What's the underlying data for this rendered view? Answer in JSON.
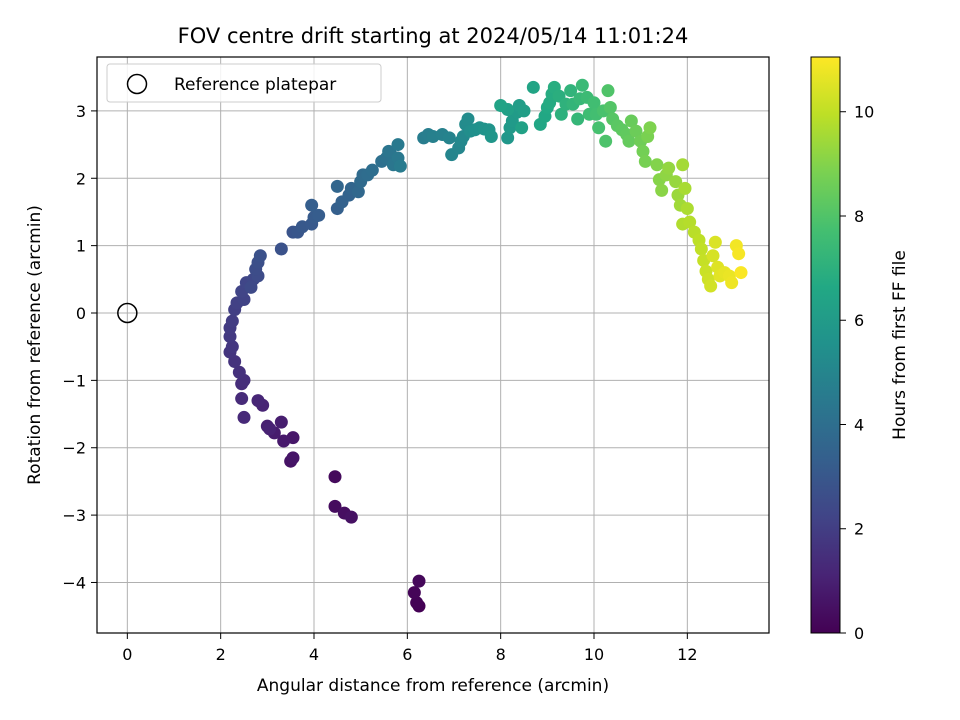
{
  "chart_data": {
    "type": "scatter",
    "title": "FOV centre drift starting at 2024/05/14 11:01:24",
    "xlabel": "Angular distance from reference (arcmin)",
    "ylabel": "Rotation from reference (arcmin)",
    "xlim": [
      -0.65,
      13.75
    ],
    "ylim": [
      -4.75,
      3.8
    ],
    "xticks": [
      0,
      2,
      4,
      6,
      8,
      10,
      12
    ],
    "yticks": [
      -4,
      -3,
      -2,
      -1,
      0,
      1,
      2,
      3
    ],
    "xtick_labels": [
      "0",
      "2",
      "4",
      "6",
      "8",
      "10",
      "12"
    ],
    "ytick_labels": [
      "−4",
      "−3",
      "−2",
      "−1",
      "0",
      "1",
      "2",
      "3"
    ],
    "grid": true,
    "legend": {
      "placement": "top-left",
      "entries": [
        "Reference platepar"
      ]
    },
    "colorbar": {
      "label": "Hours from first FF file",
      "colormap": "viridis",
      "range": [
        0,
        11.05
      ],
      "ticks": [
        0,
        2,
        4,
        6,
        8,
        10
      ],
      "tick_labels": [
        "0",
        "2",
        "4",
        "6",
        "8",
        "10"
      ]
    },
    "reference_point": {
      "x": 0,
      "y": 0
    },
    "point_order": [
      "x",
      "y",
      "hours"
    ],
    "points": [
      [
        6.25,
        -4.35
      ],
      [
        6.2,
        -4.3
      ],
      [
        6.15,
        -4.15
      ],
      [
        6.25,
        -3.98
      ],
      [
        4.45,
        -2.43
      ],
      [
        4.45,
        -2.87
      ],
      [
        4.65,
        -2.97
      ],
      [
        4.8,
        -3.03
      ],
      [
        3.5,
        -2.2
      ],
      [
        3.55,
        -2.15
      ],
      [
        3.55,
        -1.85
      ],
      [
        3.35,
        -1.9
      ],
      [
        3.15,
        -1.78
      ],
      [
        3.3,
        -1.62
      ],
      [
        3.0,
        -1.68
      ],
      [
        3.05,
        -1.72
      ],
      [
        2.9,
        -1.37
      ],
      [
        2.8,
        -1.3
      ],
      [
        2.5,
        -1.55
      ],
      [
        2.45,
        -1.27
      ],
      [
        2.45,
        -1.05
      ],
      [
        2.5,
        -1.0
      ],
      [
        2.4,
        -0.88
      ],
      [
        2.3,
        -0.72
      ],
      [
        2.2,
        -0.58
      ],
      [
        2.25,
        -0.5
      ],
      [
        2.2,
        -0.35
      ],
      [
        2.2,
        -0.22
      ],
      [
        2.25,
        -0.12
      ],
      [
        2.3,
        0.05
      ],
      [
        2.35,
        0.15
      ],
      [
        2.5,
        0.2
      ],
      [
        2.45,
        0.32
      ],
      [
        2.55,
        0.45
      ],
      [
        2.7,
        0.5
      ],
      [
        2.65,
        0.38
      ],
      [
        2.8,
        0.55
      ],
      [
        2.75,
        0.65
      ],
      [
        2.8,
        0.75
      ],
      [
        2.85,
        0.85
      ],
      [
        3.3,
        0.95
      ],
      [
        3.55,
        1.2
      ],
      [
        3.65,
        1.2
      ],
      [
        3.75,
        1.28
      ],
      [
        3.95,
        1.32
      ],
      [
        4.0,
        1.42
      ],
      [
        4.1,
        1.45
      ],
      [
        3.95,
        1.6
      ],
      [
        4.5,
        1.55
      ],
      [
        4.6,
        1.65
      ],
      [
        4.75,
        1.75
      ],
      [
        4.8,
        1.85
      ],
      [
        4.5,
        1.88
      ],
      [
        4.95,
        1.8
      ],
      [
        5.0,
        1.95
      ],
      [
        5.05,
        2.05
      ],
      [
        5.15,
        2.05
      ],
      [
        5.25,
        2.12
      ],
      [
        5.45,
        2.25
      ],
      [
        5.55,
        2.3
      ],
      [
        5.65,
        2.35
      ],
      [
        5.6,
        2.4
      ],
      [
        5.7,
        2.2
      ],
      [
        5.8,
        2.3
      ],
      [
        5.8,
        2.5
      ],
      [
        5.85,
        2.18
      ],
      [
        6.35,
        2.6
      ],
      [
        6.45,
        2.65
      ],
      [
        6.55,
        2.62
      ],
      [
        6.75,
        2.65
      ],
      [
        6.9,
        2.6
      ],
      [
        6.95,
        2.35
      ],
      [
        7.1,
        2.45
      ],
      [
        7.15,
        2.55
      ],
      [
        7.2,
        2.62
      ],
      [
        7.25,
        2.8
      ],
      [
        7.3,
        2.88
      ],
      [
        7.35,
        2.7
      ],
      [
        7.45,
        2.72
      ],
      [
        7.55,
        2.75
      ],
      [
        7.65,
        2.73
      ],
      [
        7.75,
        2.72
      ],
      [
        7.8,
        2.62
      ],
      [
        8.15,
        2.6
      ],
      [
        8.2,
        2.75
      ],
      [
        8.25,
        2.85
      ],
      [
        8.35,
        2.98
      ],
      [
        8.4,
        3.08
      ],
      [
        8.5,
        3.0
      ],
      [
        8.15,
        3.02
      ],
      [
        8.45,
        2.75
      ],
      [
        8.0,
        3.08
      ],
      [
        8.7,
        3.35
      ],
      [
        8.85,
        2.8
      ],
      [
        8.95,
        2.92
      ],
      [
        9.0,
        3.05
      ],
      [
        9.05,
        3.12
      ],
      [
        9.1,
        3.25
      ],
      [
        9.15,
        3.35
      ],
      [
        9.25,
        3.22
      ],
      [
        9.3,
        2.95
      ],
      [
        9.4,
        3.1
      ],
      [
        9.5,
        3.3
      ],
      [
        9.55,
        3.1
      ],
      [
        9.65,
        2.88
      ],
      [
        9.7,
        3.18
      ],
      [
        9.75,
        3.38
      ],
      [
        9.85,
        3.2
      ],
      [
        9.9,
        2.95
      ],
      [
        10.0,
        3.12
      ],
      [
        10.05,
        2.95
      ],
      [
        10.1,
        2.75
      ],
      [
        10.2,
        3.0
      ],
      [
        10.25,
        2.55
      ],
      [
        10.3,
        3.3
      ],
      [
        10.35,
        3.05
      ],
      [
        10.4,
        2.88
      ],
      [
        10.5,
        2.78
      ],
      [
        10.6,
        2.72
      ],
      [
        10.7,
        2.65
      ],
      [
        10.75,
        2.55
      ],
      [
        10.8,
        2.85
      ],
      [
        10.9,
        2.7
      ],
      [
        11.0,
        2.55
      ],
      [
        11.05,
        2.4
      ],
      [
        11.1,
        2.25
      ],
      [
        11.15,
        2.62
      ],
      [
        11.2,
        2.75
      ],
      [
        11.35,
        2.2
      ],
      [
        11.4,
        1.98
      ],
      [
        11.45,
        1.82
      ],
      [
        11.55,
        2.05
      ],
      [
        11.6,
        2.15
      ],
      [
        11.75,
        1.95
      ],
      [
        11.8,
        1.75
      ],
      [
        11.85,
        1.6
      ],
      [
        11.9,
        2.2
      ],
      [
        11.95,
        1.85
      ],
      [
        12.0,
        1.55
      ],
      [
        11.9,
        1.32
      ],
      [
        12.05,
        1.35
      ],
      [
        12.15,
        1.2
      ],
      [
        12.25,
        1.08
      ],
      [
        12.3,
        0.95
      ],
      [
        12.35,
        0.78
      ],
      [
        12.4,
        0.62
      ],
      [
        12.45,
        0.5
      ],
      [
        12.5,
        0.4
      ],
      [
        12.55,
        0.85
      ],
      [
        12.6,
        1.05
      ],
      [
        12.65,
        0.68
      ],
      [
        12.7,
        0.55
      ],
      [
        12.8,
        0.6
      ],
      [
        12.9,
        0.55
      ],
      [
        12.95,
        0.45
      ],
      [
        13.05,
        1.0
      ],
      [
        13.1,
        0.88
      ],
      [
        13.15,
        0.6
      ]
    ]
  }
}
